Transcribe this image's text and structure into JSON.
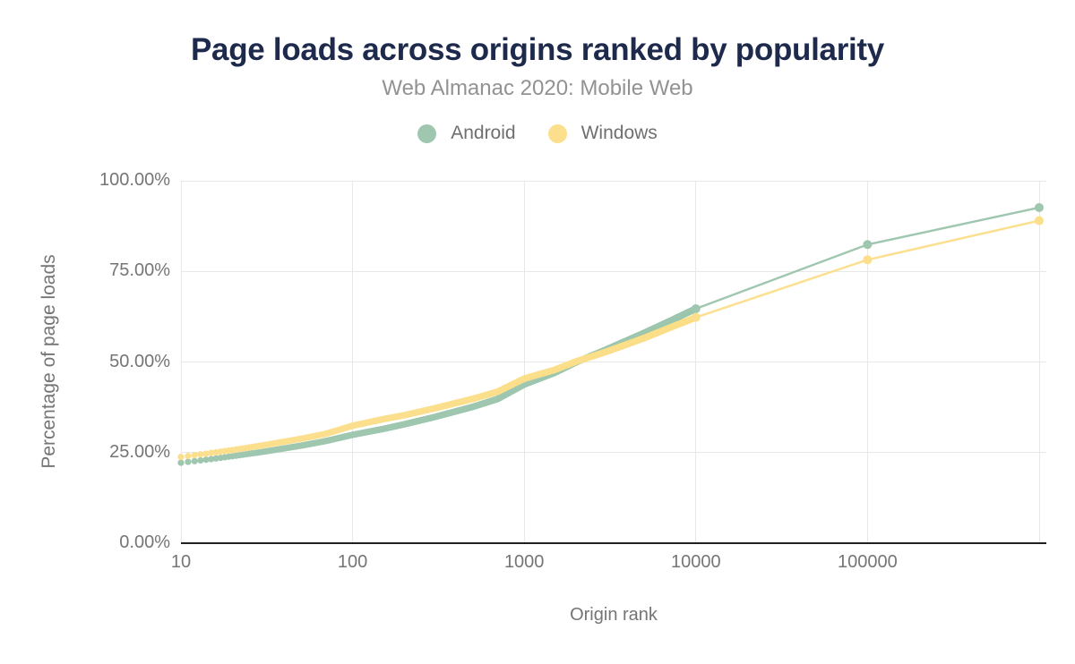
{
  "chart": {
    "title": "Page loads across origins ranked by popularity",
    "subtitle": "Web Almanac 2020: Mobile Web",
    "legend": [
      {
        "label": "Android",
        "color": "#9fc7b0"
      },
      {
        "label": "Windows",
        "color": "#fbdf8d"
      }
    ],
    "colors": {
      "title_text": "#1d2a4c",
      "subtitle_text": "#929292",
      "axis_text": "#757575",
      "axis_line": "#212121",
      "gridline": "#e8e8e8"
    }
  },
  "chart_data": {
    "type": "scatter",
    "title": "Page loads across origins ranked by popularity",
    "subtitle": "Web Almanac 2020: Mobile Web",
    "xlabel": "Origin rank",
    "ylabel": "Percentage of page loads",
    "legend_position": "top",
    "grid": true,
    "x_axis": {
      "scale": "log",
      "min": 10,
      "max": 1100000,
      "tick_values": [
        10,
        100,
        1000,
        10000,
        100000
      ],
      "tick_labels": [
        "10",
        "100",
        "1000",
        "10000",
        "100000"
      ],
      "gridline_values": [
        10,
        100,
        1000,
        10000,
        100000,
        1000000
      ]
    },
    "y_axis": {
      "min": 0,
      "max": 100,
      "tick_values": [
        0,
        25,
        50,
        75,
        100
      ],
      "tick_labels": [
        "0.00%",
        "25.00%",
        "50.00%",
        "75.00%",
        "100.00%"
      ]
    },
    "series": [
      {
        "name": "Android",
        "color": "#9fc7b0",
        "dense_dot_rank_range": [
          10,
          10000
        ],
        "points": [
          [
            10,
            22.2
          ],
          [
            15,
            23.2
          ],
          [
            20,
            24.0
          ],
          [
            30,
            25.2
          ],
          [
            50,
            26.9
          ],
          [
            70,
            28.2
          ],
          [
            100,
            29.9
          ],
          [
            150,
            31.5
          ],
          [
            200,
            32.8
          ],
          [
            300,
            34.8
          ],
          [
            500,
            37.6
          ],
          [
            700,
            39.8
          ],
          [
            1000,
            43.8
          ],
          [
            1500,
            47.0
          ],
          [
            2000,
            49.9
          ],
          [
            3000,
            53.4
          ],
          [
            5000,
            58.0
          ],
          [
            7000,
            61.2
          ],
          [
            10000,
            64.7
          ],
          [
            100000,
            82.4
          ],
          [
            1000000,
            92.6
          ]
        ]
      },
      {
        "name": "Windows",
        "color": "#fbdf8d",
        "dense_dot_rank_range": [
          10,
          10000
        ],
        "points": [
          [
            10,
            23.8
          ],
          [
            15,
            24.9
          ],
          [
            20,
            25.7
          ],
          [
            30,
            27.0
          ],
          [
            50,
            28.8
          ],
          [
            70,
            30.2
          ],
          [
            100,
            32.4
          ],
          [
            150,
            34.2
          ],
          [
            200,
            35.3
          ],
          [
            300,
            37.2
          ],
          [
            500,
            39.8
          ],
          [
            700,
            41.8
          ],
          [
            1000,
            45.4
          ],
          [
            1500,
            47.8
          ],
          [
            2000,
            50.1
          ],
          [
            3000,
            52.8
          ],
          [
            5000,
            56.6
          ],
          [
            7000,
            59.4
          ],
          [
            10000,
            62.3
          ],
          [
            100000,
            78.2
          ],
          [
            1000000,
            89.0
          ]
        ]
      }
    ]
  }
}
